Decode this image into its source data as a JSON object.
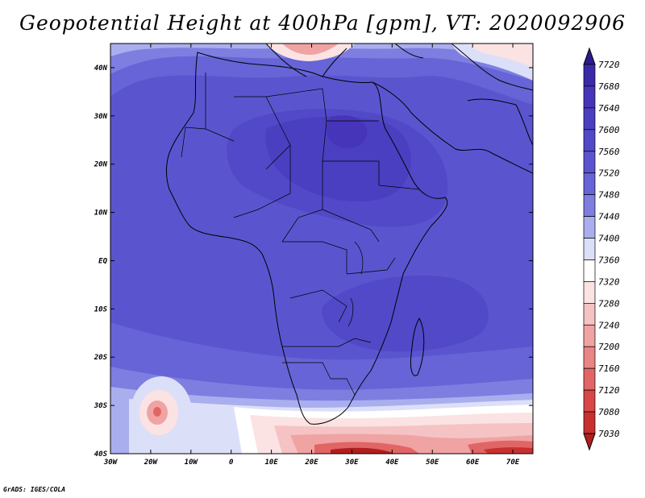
{
  "title": "Geopotential Height at 400hPa [gpm], VT: 2020092906",
  "credit": "GrADS: IGES/COLA",
  "map": {
    "lon_range": [
      -30,
      75
    ],
    "lat_range": [
      -40,
      45
    ],
    "lon_ticks": [
      "30W",
      "20W",
      "10W",
      "0",
      "10E",
      "20E",
      "30E",
      "40E",
      "50E",
      "60E",
      "70E"
    ],
    "lat_ticks": [
      "40S",
      "30S",
      "20S",
      "10S",
      "EQ",
      "10N",
      "20N",
      "30N",
      "40N"
    ]
  },
  "colorbar": {
    "levels": [
      "7720",
      "7680",
      "7640",
      "7600",
      "7560",
      "7520",
      "7480",
      "7440",
      "7400",
      "7360",
      "7320",
      "7280",
      "7240",
      "7200",
      "7160",
      "7120",
      "7080",
      "7030"
    ],
    "colors": [
      "#2e1a8c",
      "#3a2aa8",
      "#4635b8",
      "#4a3fc0",
      "#5149c8",
      "#5a55cf",
      "#6664d6",
      "#7d7ee0",
      "#a9aeee",
      "#dcdff8",
      "#ffffff",
      "#fbe3e3",
      "#f5c3c3",
      "#f0a3a3",
      "#ea8585",
      "#e26565",
      "#d84747",
      "#c83030",
      "#b01e1e"
    ]
  }
}
